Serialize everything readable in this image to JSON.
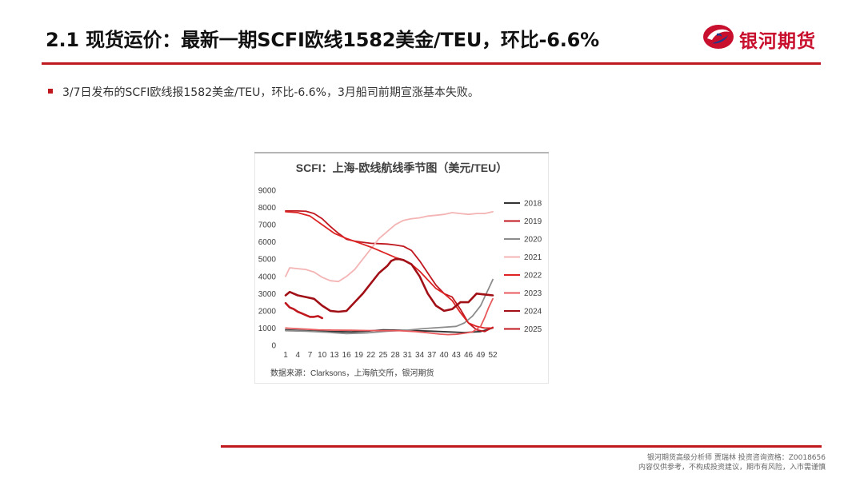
{
  "slide": {
    "title": "2.1 现货运价：最新一期SCFI欧线1582美金/TEU，环比-6.6%",
    "bullet": "3/7日发布的SCFI欧线报1582美金/TEU，环比-6.6%，3月船司前期宣涨基本失败。"
  },
  "logo": {
    "text": "银河期货",
    "brand_color": "#c8102e"
  },
  "footer": {
    "line1": "银河期货高级分析师 贾瑞林 投资咨询资格：Z0018656",
    "line2": "内容仅供参考，不构成投资建议，期市有风险，入市需谨慎"
  },
  "chart_data": {
    "type": "line",
    "title": "SCFI：上海-欧线航线季节图（美元/TEU）",
    "source": "数据来源：Clarksons，上海航交所，银河期货",
    "xlabel": "",
    "ylabel": "",
    "x_ticks": [
      1,
      4,
      7,
      10,
      13,
      16,
      19,
      22,
      25,
      28,
      31,
      34,
      37,
      40,
      43,
      46,
      49,
      52
    ],
    "y_ticks": [
      0,
      1000,
      2000,
      3000,
      4000,
      5000,
      6000,
      7000,
      8000,
      9000
    ],
    "xlim": [
      1,
      52
    ],
    "ylim": [
      0,
      9000
    ],
    "grid": false,
    "legend_position": "right",
    "series": [
      {
        "name": "2018",
        "color": "#333333",
        "x": [
          1,
          5,
          9,
          13,
          17,
          21,
          25,
          29,
          33,
          37,
          41,
          45,
          49,
          52
        ],
        "values": [
          900,
          860,
          820,
          800,
          780,
          820,
          900,
          880,
          850,
          820,
          780,
          740,
          800,
          1000
        ]
      },
      {
        "name": "2019",
        "color": "#c0181f",
        "x": [
          1,
          4,
          6,
          8,
          10,
          12,
          14,
          16,
          18,
          20,
          22,
          24,
          26,
          28,
          30,
          32,
          34,
          36,
          38,
          40,
          42,
          44,
          46,
          48,
          50,
          52
        ],
        "values": [
          7800,
          7800,
          7780,
          7650,
          7350,
          6900,
          6500,
          6150,
          6050,
          5980,
          5920,
          5900,
          5880,
          5820,
          5750,
          5500,
          4900,
          4200,
          3500,
          3000,
          2800,
          2100,
          1300,
          900,
          800,
          1050
        ]
      },
      {
        "name": "2020",
        "color": "#8c8c8c",
        "x": [
          1,
          6,
          11,
          16,
          21,
          26,
          31,
          34,
          37,
          40,
          43,
          45,
          47,
          49,
          50,
          51,
          52
        ],
        "values": [
          850,
          820,
          760,
          680,
          720,
          820,
          880,
          950,
          1000,
          1050,
          1100,
          1300,
          1700,
          2300,
          2800,
          3300,
          3820
        ]
      },
      {
        "name": "2021",
        "color": "#f4b4b4",
        "x": [
          1,
          2,
          4,
          6,
          8,
          10,
          12,
          14,
          16,
          18,
          20,
          22,
          24,
          26,
          28,
          30,
          32,
          34,
          36,
          38,
          40,
          42,
          44,
          46,
          48,
          50,
          52
        ],
        "values": [
          4000,
          4500,
          4450,
          4400,
          4250,
          3950,
          3750,
          3700,
          4000,
          4400,
          5000,
          5600,
          6200,
          6600,
          7000,
          7250,
          7350,
          7400,
          7500,
          7550,
          7600,
          7700,
          7650,
          7600,
          7650,
          7650,
          7750
        ]
      },
      {
        "name": "2022",
        "color": "#dd2424",
        "x": [
          1,
          4,
          7,
          10,
          13,
          16,
          19,
          22,
          25,
          28,
          30,
          32,
          34,
          36,
          38,
          40,
          42,
          44,
          46,
          48,
          50,
          52
        ],
        "values": [
          7750,
          7700,
          7500,
          7000,
          6500,
          6200,
          5950,
          5700,
          5400,
          5100,
          4950,
          4700,
          4300,
          3800,
          3300,
          3000,
          2600,
          1900,
          1300,
          1100,
          1000,
          1000
        ]
      },
      {
        "name": "2023",
        "color": "#e8595c",
        "x": [
          1,
          5,
          9,
          13,
          17,
          21,
          25,
          29,
          33,
          35,
          37,
          39,
          41,
          43,
          45,
          47,
          49,
          50,
          51,
          52
        ],
        "values": [
          1000,
          950,
          900,
          880,
          870,
          860,
          850,
          850,
          800,
          750,
          700,
          650,
          620,
          640,
          700,
          780,
          1100,
          1600,
          2200,
          2700
        ]
      },
      {
        "name": "2024",
        "color": "#a11016",
        "x": [
          1,
          2,
          4,
          6,
          8,
          10,
          12,
          14,
          16,
          18,
          20,
          22,
          24,
          26,
          27,
          28,
          29,
          30,
          32,
          34,
          36,
          38,
          40,
          42,
          44,
          46,
          48,
          50,
          52
        ],
        "values": [
          2900,
          3100,
          2900,
          2800,
          2700,
          2300,
          2000,
          1950,
          2000,
          2500,
          3000,
          3600,
          4200,
          4600,
          4900,
          5000,
          5000,
          4950,
          4700,
          4000,
          3000,
          2300,
          2000,
          2100,
          2500,
          2500,
          3000,
          2950,
          2900
        ]
      },
      {
        "name": "2025",
        "color": "#c0181f",
        "x": [
          1,
          2,
          3,
          4,
          5,
          6,
          7,
          8,
          9,
          10
        ],
        "values": [
          2450,
          2200,
          2100,
          1950,
          1850,
          1750,
          1650,
          1650,
          1700,
          1582
        ]
      }
    ]
  }
}
